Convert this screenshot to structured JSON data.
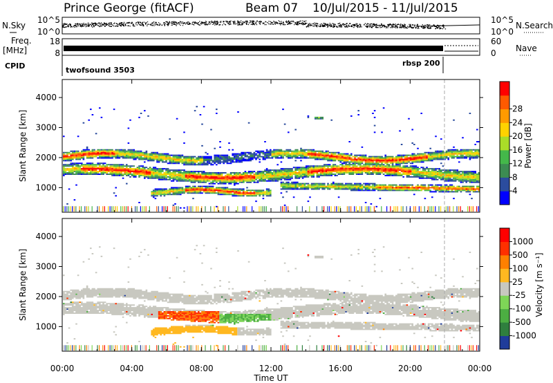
{
  "header": {
    "title": "Prince George (fitACF)",
    "beam": "Beam 07",
    "date_range": "10/Jul/2015 - 11/Jul/2015"
  },
  "labels": {
    "nsky": "N.Sky",
    "nsearch": "N.Search",
    "freq_line1": "Freq.",
    "freq_line2": "[MHz]",
    "nave": "Nave",
    "cpid": "CPID",
    "cpid_mode_1": "twofsound 3503",
    "cpid_mode_2": "rbsp 200"
  },
  "noise_panel": {
    "left_ticks": [
      "10^5",
      "10^0"
    ],
    "right_ticks": [
      "10^5",
      "10^0"
    ]
  },
  "freq_panel": {
    "left_ticks": [
      "18",
      "8"
    ],
    "right_ticks": [
      "60",
      "0"
    ]
  },
  "colors": {
    "power": [
      "#0000ff",
      "#2b4c9e",
      "#3c8c52",
      "#44b84a",
      "#aadc28",
      "#ffd200",
      "#ff9a00",
      "#ff5a00",
      "#ff0000"
    ],
    "velocity": [
      "#1f3c9a",
      "#2f7f3e",
      "#4cae42",
      "#7ed657",
      "#c8c8c0",
      "#ffb820",
      "#ff8000",
      "#ff3000",
      "#ff0000"
    ]
  },
  "chart_data": [
    {
      "type": "heatmap",
      "name": "power",
      "ylabel": "Slant Range [km]",
      "yticks": [
        1000,
        2000,
        3000,
        4000
      ],
      "ylim": [
        180,
        4600
      ],
      "xlim_hours": [
        0,
        24
      ],
      "colorbar_label": "Power [dB]",
      "colorbar_ticks": [
        4,
        8,
        12,
        16,
        20,
        24,
        28
      ]
    },
    {
      "type": "heatmap",
      "name": "velocity",
      "ylabel": "Slant Range [km]",
      "yticks": [
        1000,
        2000,
        3000,
        4000
      ],
      "ylim": [
        180,
        4600
      ],
      "xlim_hours": [
        0,
        24
      ],
      "colorbar_label": "Velocity [m s⁻¹]",
      "colorbar_ticks": [
        1000,
        500,
        100,
        25,
        -25,
        -100,
        -500,
        -1000
      ],
      "xticks": [
        "00:00",
        "04:00",
        "08:00",
        "12:00",
        "16:00",
        "20:00",
        "00:00"
      ],
      "xlabel": "Time UT"
    }
  ]
}
